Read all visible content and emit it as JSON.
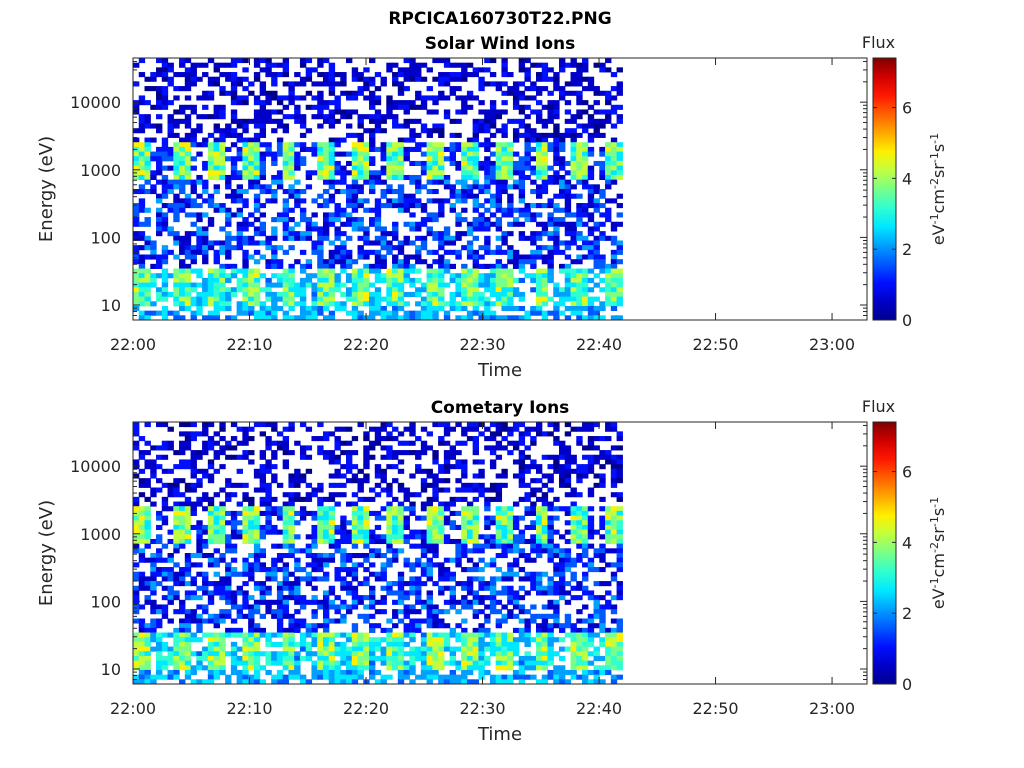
{
  "figure": {
    "title": "RPCICA160730T22.PNG"
  },
  "colormap": [
    "#00008F",
    "#0000C8",
    "#0010FF",
    "#0058FF",
    "#00A0FF",
    "#00E8FF",
    "#30FFD0",
    "#78FF88",
    "#C0FF40",
    "#FFF000",
    "#FFA800",
    "#FF6000",
    "#FF1800",
    "#D00000",
    "#800000"
  ],
  "chart_data": [
    {
      "type": "heatmap",
      "title": "Solar Wind Ions",
      "xlabel": "Time",
      "ylabel": "Energy (eV)",
      "x_ticks": [
        "22:00",
        "22:10",
        "22:20",
        "22:30",
        "22:40",
        "22:50",
        "23:00"
      ],
      "x_range": [
        "22:00",
        "23:03"
      ],
      "data_extent": [
        "22:00",
        "22:42"
      ],
      "y_ticks": [
        "10",
        "100",
        "1000",
        "10000"
      ],
      "y_scale": "log",
      "y_range": [
        6,
        45000
      ],
      "colorbar": {
        "title": "Flux",
        "label": "eV-1cm-2sr-1s-1",
        "ticks": [
          "0",
          "2",
          "4",
          "6"
        ],
        "range": [
          0,
          7.4
        ]
      },
      "features": [
        {
          "energy_band_eV": [
            700,
            2500
          ],
          "typical_flux": 3.5,
          "pattern": "periodic bursts ~ every 3 min"
        },
        {
          "energy_band_eV": [
            10,
            35
          ],
          "typical_flux": 3.5,
          "pattern": "periodic bursts"
        },
        {
          "energy_band_eV": [
            40,
            30000
          ],
          "typical_flux": 0.8,
          "pattern": "sparse background"
        }
      ]
    },
    {
      "type": "heatmap",
      "title": "Cometary Ions",
      "xlabel": "Time",
      "ylabel": "Energy (eV)",
      "x_ticks": [
        "22:00",
        "22:10",
        "22:20",
        "22:30",
        "22:40",
        "22:50",
        "23:00"
      ],
      "x_range": [
        "22:00",
        "23:03"
      ],
      "data_extent": [
        "22:00",
        "22:42"
      ],
      "y_ticks": [
        "10",
        "100",
        "1000",
        "10000"
      ],
      "y_scale": "log",
      "y_range": [
        6,
        45000
      ],
      "colorbar": {
        "title": "Flux",
        "label": "eV-1cm-2sr-1s-1",
        "ticks": [
          "0",
          "2",
          "4",
          "6"
        ],
        "range": [
          0,
          7.4
        ]
      },
      "features": [
        {
          "energy_band_eV": [
            700,
            2500
          ],
          "typical_flux": 3.5,
          "pattern": "periodic bursts ~ every 3 min"
        },
        {
          "energy_band_eV": [
            10,
            35
          ],
          "typical_flux": 4.0,
          "pattern": "periodic bursts"
        },
        {
          "energy_band_eV": [
            40,
            30000
          ],
          "typical_flux": 0.8,
          "pattern": "sparse background"
        }
      ]
    }
  ]
}
